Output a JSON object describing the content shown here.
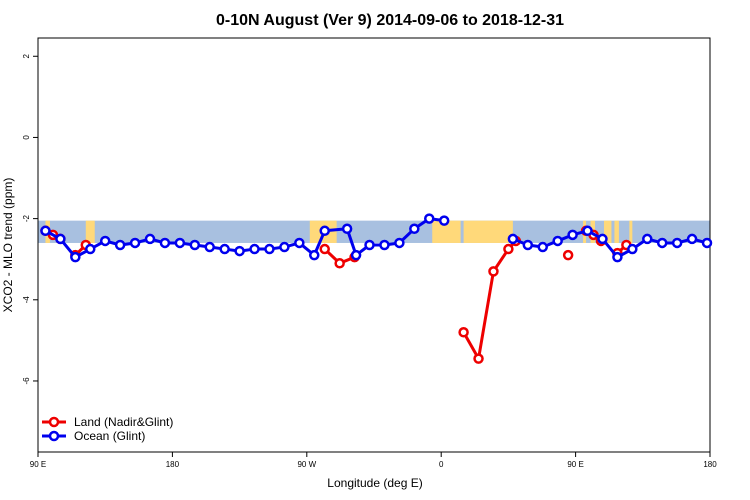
{
  "chart_data": {
    "type": "line",
    "title": "0-10N August (Ver 9)   2014-09-06 to 2018-12-31",
    "xlabel": "Longitude (deg E)",
    "ylabel": "XCO2 - MLO trend (ppm)",
    "xlim": [
      90,
      540
    ],
    "ylim": [
      -7.75,
      2.45
    ],
    "x_ticks": [
      {
        "value": 90,
        "label": "90 E"
      },
      {
        "value": 180,
        "label": "180"
      },
      {
        "value": 270,
        "label": "90 W"
      },
      {
        "value": 360,
        "label": "0"
      },
      {
        "value": 450,
        "label": "90 E"
      },
      {
        "value": 540,
        "label": "180"
      }
    ],
    "y_ticks": [
      {
        "value": 2,
        "label": "2"
      },
      {
        "value": 0,
        "label": "0"
      },
      {
        "value": -2,
        "label": "-2"
      },
      {
        "value": -4,
        "label": "-4"
      },
      {
        "value": -6,
        "label": "-6"
      }
    ],
    "background_band": {
      "lat_range": [
        0,
        10
      ],
      "y_range": [
        -2.6,
        -2.05
      ],
      "ocean_color": "#a8c0e0",
      "land_color": "#ffd97a"
    },
    "land_segments": [
      [
        95,
        98
      ],
      [
        122,
        128
      ],
      [
        272,
        290
      ],
      [
        354,
        373
      ],
      [
        375,
        408
      ],
      [
        455,
        457
      ],
      [
        460,
        463
      ],
      [
        469,
        474
      ],
      [
        476,
        479
      ],
      [
        486,
        488
      ]
    ],
    "series": [
      {
        "name": "Land (Nadir&Glint)",
        "color": "#ee0000",
        "segments": [
          [
            [
              95,
              -2.3
            ],
            [
              100,
              -2.4
            ],
            [
              105,
              -2.5
            ]
          ],
          [
            [
              115,
              -2.9
            ],
            [
              122,
              -2.65
            ]
          ],
          [
            [
              282,
              -2.75
            ],
            [
              292,
              -3.1
            ],
            [
              302,
              -2.95
            ]
          ],
          [
            [
              375,
              -4.8
            ],
            [
              385,
              -5.45
            ],
            [
              395,
              -3.3
            ],
            [
              405,
              -2.75
            ],
            [
              410,
              -2.55
            ]
          ],
          [
            [
              445,
              -2.9
            ]
          ],
          [
            [
              457,
              -2.3
            ],
            [
              462,
              -2.4
            ],
            [
              467,
              -2.55
            ]
          ],
          [
            [
              478,
              -2.85
            ],
            [
              484,
              -2.65
            ]
          ]
        ]
      },
      {
        "name": "Ocean (Glint)",
        "color": "#0000ee",
        "segments": [
          [
            [
              95,
              -2.3
            ],
            [
              105,
              -2.5
            ],
            [
              115,
              -2.95
            ],
            [
              125,
              -2.75
            ],
            [
              135,
              -2.55
            ],
            [
              145,
              -2.65
            ],
            [
              155,
              -2.6
            ],
            [
              165,
              -2.5
            ],
            [
              175,
              -2.6
            ],
            [
              185,
              -2.6
            ],
            [
              195,
              -2.65
            ],
            [
              205,
              -2.7
            ],
            [
              215,
              -2.75
            ],
            [
              225,
              -2.8
            ],
            [
              235,
              -2.75
            ],
            [
              245,
              -2.75
            ],
            [
              255,
              -2.7
            ],
            [
              265,
              -2.6
            ],
            [
              275,
              -2.9
            ],
            [
              282,
              -2.3
            ],
            [
              297,
              -2.25
            ],
            [
              303,
              -2.9
            ],
            [
              312,
              -2.65
            ],
            [
              322,
              -2.65
            ],
            [
              332,
              -2.6
            ],
            [
              342,
              -2.25
            ],
            [
              352,
              -2.0
            ],
            [
              362,
              -2.05
            ]
          ],
          [
            [
              408,
              -2.5
            ],
            [
              418,
              -2.65
            ],
            [
              428,
              -2.7
            ],
            [
              438,
              -2.55
            ],
            [
              448,
              -2.4
            ],
            [
              458,
              -2.3
            ],
            [
              468,
              -2.5
            ],
            [
              478,
              -2.95
            ],
            [
              488,
              -2.75
            ],
            [
              498,
              -2.5
            ],
            [
              508,
              -2.6
            ],
            [
              518,
              -2.6
            ],
            [
              528,
              -2.5
            ],
            [
              538,
              -2.6
            ]
          ]
        ]
      }
    ],
    "legend_position": "bottom-left"
  }
}
